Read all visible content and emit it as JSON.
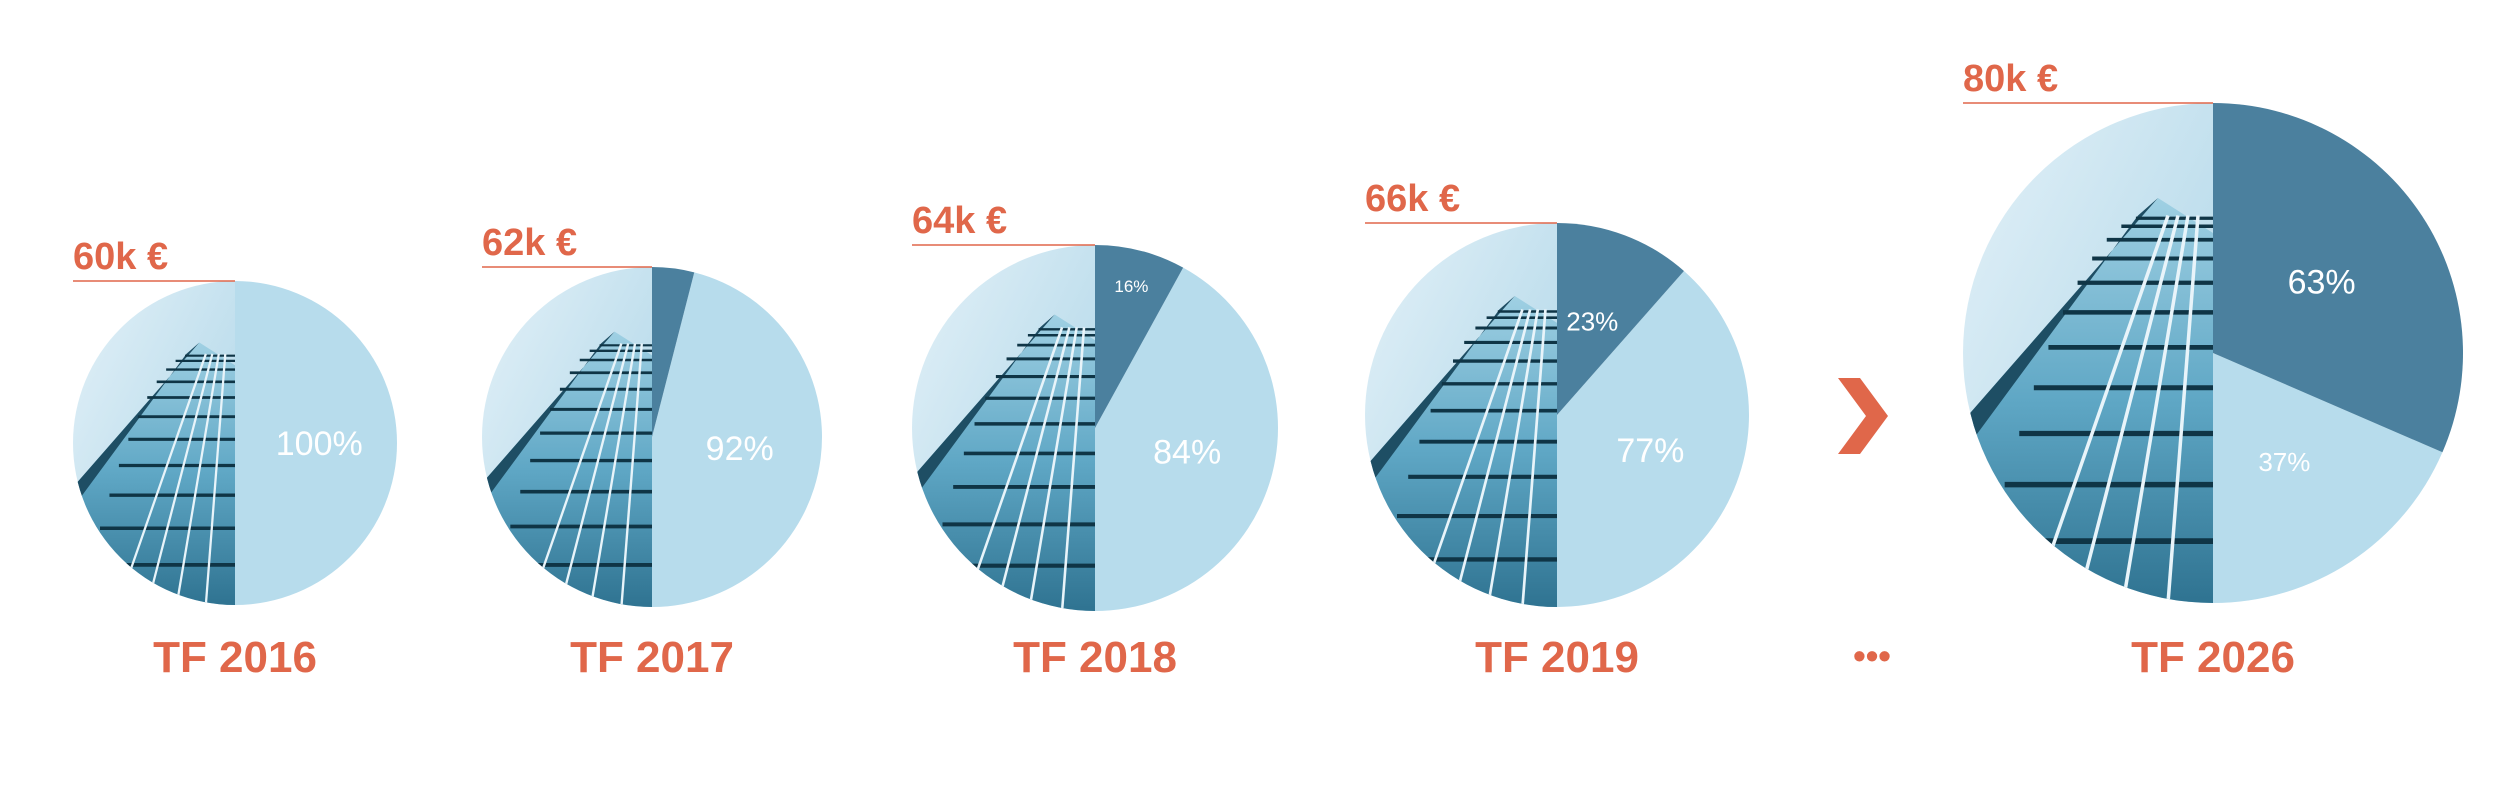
{
  "theme": {
    "accent": "#E0674A",
    "dark_segment": "#4B809E",
    "light_segment": "#B7DCEC",
    "building_light": "#CDE7F3",
    "building_mid": "#5FA7C5",
    "building_dark": "#1E4E64"
  },
  "chart_data": [
    {
      "type": "pie",
      "year_label": "TF 2016",
      "total_label": "60k €",
      "total": 60,
      "slices": [
        {
          "value": 100,
          "label": "100%"
        },
        {
          "value": 0,
          "label": ""
        }
      ]
    },
    {
      "type": "pie",
      "year_label": "TF 2017",
      "total_label": "62k €",
      "total": 62,
      "slices": [
        {
          "value": 92,
          "label": "92%"
        },
        {
          "value": 8,
          "label": ""
        }
      ]
    },
    {
      "type": "pie",
      "year_label": "TF 2018",
      "total_label": "64k €",
      "total": 64,
      "slices": [
        {
          "value": 84,
          "label": "84%"
        },
        {
          "value": 16,
          "label": "16%"
        }
      ]
    },
    {
      "type": "pie",
      "year_label": "TF 2019",
      "total_label": "66k €",
      "total": 66,
      "slices": [
        {
          "value": 77,
          "label": "77%"
        },
        {
          "value": 23,
          "label": "23%"
        }
      ]
    },
    {
      "type": "pie",
      "year_label": "TF 2026",
      "total_label": "80k €",
      "total": 80,
      "slices": [
        {
          "value": 37,
          "label": "37%"
        },
        {
          "value": 63,
          "label": "63%"
        }
      ]
    }
  ],
  "separator": {
    "ellipsis": "•••",
    "arrow_icon": "chevron-right-icon"
  }
}
